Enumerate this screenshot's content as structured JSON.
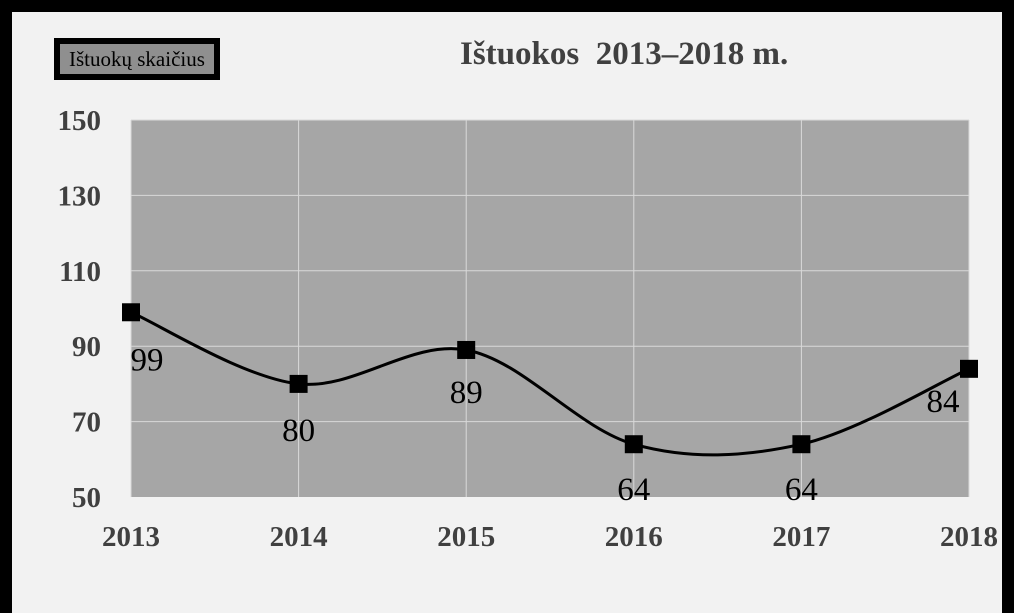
{
  "chart_data": {
    "type": "line",
    "title": "Ištuokos  2013–2018 m.",
    "legend": {
      "label": "Ištuokų skaičius",
      "placement": "top-left"
    },
    "categories": [
      "2013",
      "2014",
      "2015",
      "2016",
      "2017",
      "2018"
    ],
    "series": [
      {
        "name": "Ištuokų skaičius",
        "values": [
          99,
          80,
          89,
          64,
          64,
          84
        ]
      }
    ],
    "data_labels": [
      "99",
      "80",
      "89",
      "64",
      "64",
      "84"
    ],
    "ylim": [
      50,
      150
    ],
    "yticks": [
      50,
      70,
      90,
      110,
      130,
      150
    ],
    "grid": true,
    "smooth": true,
    "marker": "square",
    "colors": {
      "plot_bg": "#a6a6a6",
      "line": "#000000",
      "grid": "#d9d9d9",
      "page_bg": "#f2f2f2"
    }
  }
}
